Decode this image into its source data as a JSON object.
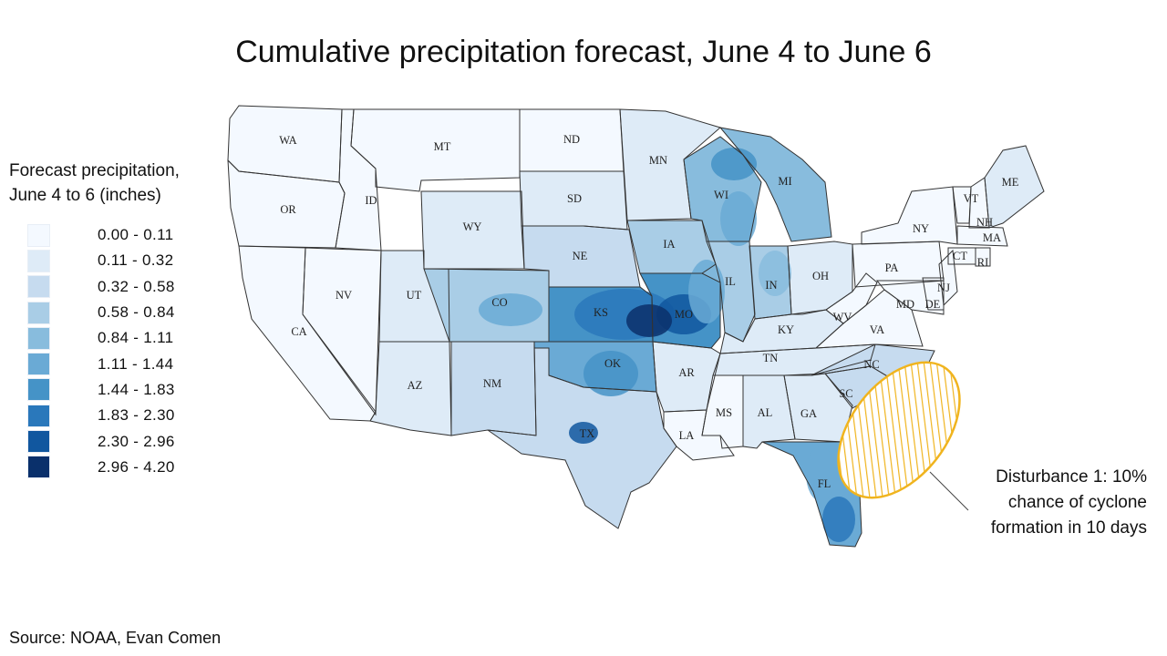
{
  "title": "Cumulative precipitation forecast, June 4 to June 6",
  "legend": {
    "title_line1": "Forecast precipitation,",
    "title_line2": "June 4 to 6 (inches)",
    "bins": [
      {
        "label": "0.00 - 0.11",
        "color": "#f4f9ff"
      },
      {
        "label": "0.11 - 0.32",
        "color": "#deebf7"
      },
      {
        "label": "0.32 - 0.58",
        "color": "#c6dbef"
      },
      {
        "label": "0.58 - 0.84",
        "color": "#a9cde6"
      },
      {
        "label": "0.84 - 1.11",
        "color": "#88bcdd"
      },
      {
        "label": "1.11 - 1.44",
        "color": "#6aaad5"
      },
      {
        "label": "1.44 - 1.83",
        "color": "#4593c7"
      },
      {
        "label": "1.83 - 2.30",
        "color": "#2a78bb"
      },
      {
        "label": "2.30 - 2.96",
        "color": "#11579f"
      },
      {
        "label": "2.96 - 4.20",
        "color": "#0a306b"
      }
    ]
  },
  "annotation": {
    "line1": "Disturbance 1: 10%",
    "line2": "chance of cyclone",
    "line3": "formation in 10 days",
    "hatch_color": "#f0b41e"
  },
  "source": "Source: NOAA, Evan Comen",
  "states": [
    "WA",
    "MT",
    "ND",
    "MN",
    "OR",
    "ID",
    "SD",
    "WY",
    "WI",
    "MI",
    "ME",
    "VT",
    "NH",
    "NY",
    "MA",
    "CT",
    "RI",
    "IA",
    "NE",
    "PA",
    "NV",
    "UT",
    "CO",
    "IL",
    "IN",
    "OH",
    "NJ",
    "CA",
    "KS",
    "MO",
    "MD",
    "DE",
    "KY",
    "WV",
    "VA",
    "TN",
    "NC",
    "AZ",
    "NM",
    "OK",
    "AR",
    "SC",
    "MS",
    "AL",
    "GA",
    "TX",
    "LA",
    "FL"
  ],
  "precip_by_state_bin": {
    "WA": 0,
    "OR": 0,
    "CA": 0,
    "NV": 0,
    "ID": 0,
    "MT": 0,
    "ND": 0,
    "MN": 1,
    "WY": 1,
    "SD": 1,
    "UT": 1,
    "AZ": 1,
    "NM": 2,
    "CO": 3,
    "NE": 2,
    "KS": 6,
    "OK": 5,
    "TX": 2,
    "MO": 6,
    "IA": 3,
    "WI": 4,
    "MI": 4,
    "IL": 3,
    "IN": 3,
    "OH": 1,
    "KY": 1,
    "TN": 1,
    "AR": 1,
    "LA": 0,
    "MS": 0,
    "AL": 1,
    "GA": 1,
    "FL": 5,
    "SC": 2,
    "NC": 2,
    "VA": 0,
    "WV": 0,
    "PA": 0,
    "NY": 0,
    "VT": 0,
    "NH": 0,
    "ME": 1,
    "MA": 0,
    "CT": 0,
    "RI": 0,
    "NJ": 0,
    "DE": 0,
    "MD": 0
  }
}
